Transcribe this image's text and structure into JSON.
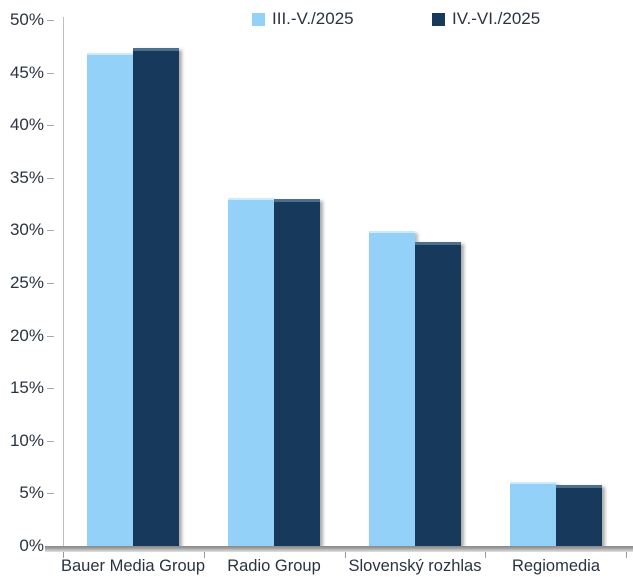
{
  "chart_data": {
    "type": "bar",
    "title": "",
    "xlabel": "",
    "ylabel": "",
    "categories": [
      "Bauer Media Group",
      "Radio Group",
      "Slovenský rozhlas",
      "Regiomedia"
    ],
    "series": [
      {
        "name": "III.-V./2025",
        "color": "#93D1F9",
        "bevel_color": "#CDE9FC",
        "values": [
          46.9,
          33.1,
          29.9,
          6.1
        ]
      },
      {
        "name": "IV.-VI./2025",
        "color": "#16395C",
        "bevel_color": "#4D6F8E",
        "values": [
          47.3,
          33.0,
          28.9,
          5.8
        ]
      }
    ],
    "ylim": [
      0,
      50
    ],
    "ytick_step": 5,
    "ytick_labels": [
      "0%",
      "5%",
      "10%",
      "15%",
      "20%",
      "25%",
      "30%",
      "35%",
      "40%",
      "45%",
      "50%"
    ],
    "grid": false,
    "legend_position": "top"
  },
  "colors": {
    "background": "#FFFFFF",
    "text": "#2A3440",
    "axis_line": "#BFBFBF",
    "tick": "#A8A8A8",
    "baseline_band_dark": "#868686",
    "baseline_band_light": "#E3E3E3"
  }
}
